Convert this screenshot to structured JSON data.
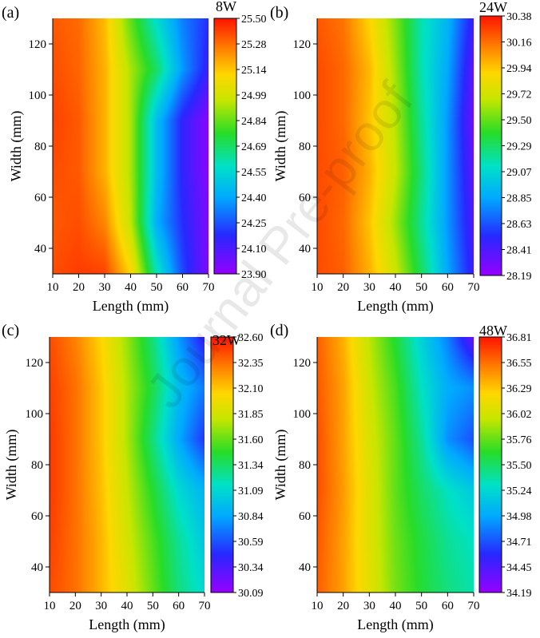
{
  "watermark": "Journal Pre-proof",
  "chart_data": [
    {
      "type": "heatmap",
      "panel_label": "(a)",
      "title": "8W",
      "xlabel": "Length (mm)",
      "ylabel": "Width (mm)",
      "xlim": [
        10,
        70
      ],
      "ylim": [
        30,
        130
      ],
      "xticks": [
        10,
        20,
        30,
        40,
        50,
        60,
        70
      ],
      "yticks": [
        40,
        60,
        80,
        100,
        120
      ],
      "colorbar_ticks": [
        "25.50",
        "25.28",
        "25.14",
        "24.99",
        "24.84",
        "24.69",
        "24.55",
        "24.40",
        "24.25",
        "24.10",
        "23.90"
      ],
      "vmin": 23.9,
      "vmax": 25.5,
      "x": [
        10,
        20,
        30,
        40,
        50,
        60,
        70
      ],
      "y": [
        30,
        50,
        70,
        90,
        110,
        130
      ],
      "z": [
        [
          25.4,
          25.43,
          25.42,
          25.15,
          24.6,
          24.2,
          23.95
        ],
        [
          25.38,
          25.4,
          25.3,
          24.98,
          24.4,
          24.15,
          23.95
        ],
        [
          25.4,
          25.38,
          25.22,
          24.95,
          24.45,
          24.12,
          23.93
        ],
        [
          25.42,
          25.38,
          25.22,
          24.95,
          24.45,
          24.12,
          23.93
        ],
        [
          25.4,
          25.36,
          25.22,
          24.95,
          24.7,
          24.35,
          24.1
        ],
        [
          25.38,
          25.35,
          25.2,
          24.85,
          24.55,
          24.3,
          24.15
        ]
      ]
    },
    {
      "type": "heatmap",
      "panel_label": "(b)",
      "title": "24W",
      "xlabel": "Length (mm)",
      "ylabel": "Width (mm)",
      "xlim": [
        10,
        70
      ],
      "ylim": [
        30,
        130
      ],
      "xticks": [
        10,
        20,
        30,
        40,
        50,
        60,
        70
      ],
      "yticks": [
        40,
        60,
        80,
        100,
        120
      ],
      "colorbar_ticks": [
        "30.38",
        "30.16",
        "29.94",
        "29.72",
        "29.50",
        "29.29",
        "29.07",
        "28.85",
        "28.63",
        "28.41",
        "28.19"
      ],
      "vmin": 28.19,
      "vmax": 30.38,
      "x": [
        10,
        20,
        30,
        40,
        50,
        60,
        70
      ],
      "y": [
        30,
        50,
        70,
        90,
        110,
        130
      ],
      "z": [
        [
          30.25,
          30.2,
          30.0,
          29.7,
          29.3,
          28.85,
          28.45
        ],
        [
          30.25,
          30.18,
          29.95,
          29.6,
          29.2,
          28.8,
          28.4
        ],
        [
          30.25,
          30.2,
          30.0,
          29.68,
          29.25,
          28.8,
          28.35
        ],
        [
          30.25,
          30.18,
          29.95,
          29.65,
          29.2,
          28.8,
          28.3
        ],
        [
          30.25,
          30.18,
          29.98,
          29.6,
          29.15,
          28.85,
          28.35
        ],
        [
          30.22,
          30.15,
          29.9,
          29.55,
          29.15,
          28.9,
          28.45
        ]
      ]
    },
    {
      "type": "heatmap",
      "panel_label": "(c)",
      "title": "32W",
      "xlabel": "Length (mm)",
      "ylabel": "Width (mm)",
      "xlim": [
        10,
        70
      ],
      "ylim": [
        30,
        130
      ],
      "xticks": [
        10,
        20,
        30,
        40,
        50,
        60,
        70
      ],
      "yticks": [
        40,
        60,
        80,
        100,
        120
      ],
      "colorbar_ticks": [
        "32.60",
        "32.35",
        "32.10",
        "31.85",
        "31.60",
        "31.34",
        "31.09",
        "30.84",
        "30.59",
        "30.34",
        "30.09"
      ],
      "vmin": 30.09,
      "vmax": 32.6,
      "x": [
        10,
        20,
        30,
        40,
        50,
        60,
        70
      ],
      "y": [
        30,
        50,
        70,
        90,
        110,
        130
      ],
      "z": [
        [
          32.45,
          32.35,
          32.15,
          31.9,
          31.6,
          31.3,
          31.1
        ],
        [
          32.48,
          32.35,
          32.15,
          31.85,
          31.55,
          31.25,
          31.0
        ],
        [
          32.5,
          32.35,
          32.12,
          31.8,
          31.45,
          31.1,
          30.9
        ],
        [
          32.5,
          32.35,
          32.1,
          31.75,
          31.3,
          30.85,
          30.5
        ],
        [
          32.48,
          32.35,
          32.1,
          31.75,
          31.4,
          30.95,
          30.7
        ],
        [
          32.45,
          32.3,
          32.05,
          31.7,
          31.3,
          30.8,
          30.4
        ]
      ]
    },
    {
      "type": "heatmap",
      "panel_label": "(d)",
      "title": "48W",
      "xlabel": "Length (mm)",
      "ylabel": "Width (mm)",
      "xlim": [
        10,
        70
      ],
      "ylim": [
        30,
        130
      ],
      "xticks": [
        10,
        20,
        30,
        40,
        50,
        60,
        70
      ],
      "yticks": [
        40,
        60,
        80,
        100,
        120
      ],
      "colorbar_ticks": [
        "36.81",
        "36.55",
        "36.29",
        "36.02",
        "35.76",
        "35.50",
        "35.24",
        "34.98",
        "34.71",
        "34.45",
        "34.19"
      ],
      "vmin": 34.19,
      "vmax": 36.81,
      "x": [
        10,
        20,
        30,
        40,
        50,
        60,
        70
      ],
      "y": [
        30,
        50,
        70,
        90,
        110,
        130
      ],
      "z": [
        [
          36.6,
          36.4,
          36.1,
          35.8,
          35.6,
          35.45,
          35.35
        ],
        [
          36.62,
          36.4,
          36.08,
          35.78,
          35.58,
          35.4,
          35.3
        ],
        [
          36.65,
          36.42,
          36.08,
          35.75,
          35.5,
          35.3,
          35.15
        ],
        [
          36.65,
          36.4,
          36.05,
          35.75,
          35.4,
          34.9,
          34.7
        ],
        [
          36.62,
          36.4,
          36.0,
          35.7,
          35.3,
          35.0,
          34.9
        ],
        [
          36.6,
          36.35,
          35.95,
          35.6,
          35.2,
          34.85,
          34.35
        ]
      ]
    }
  ]
}
